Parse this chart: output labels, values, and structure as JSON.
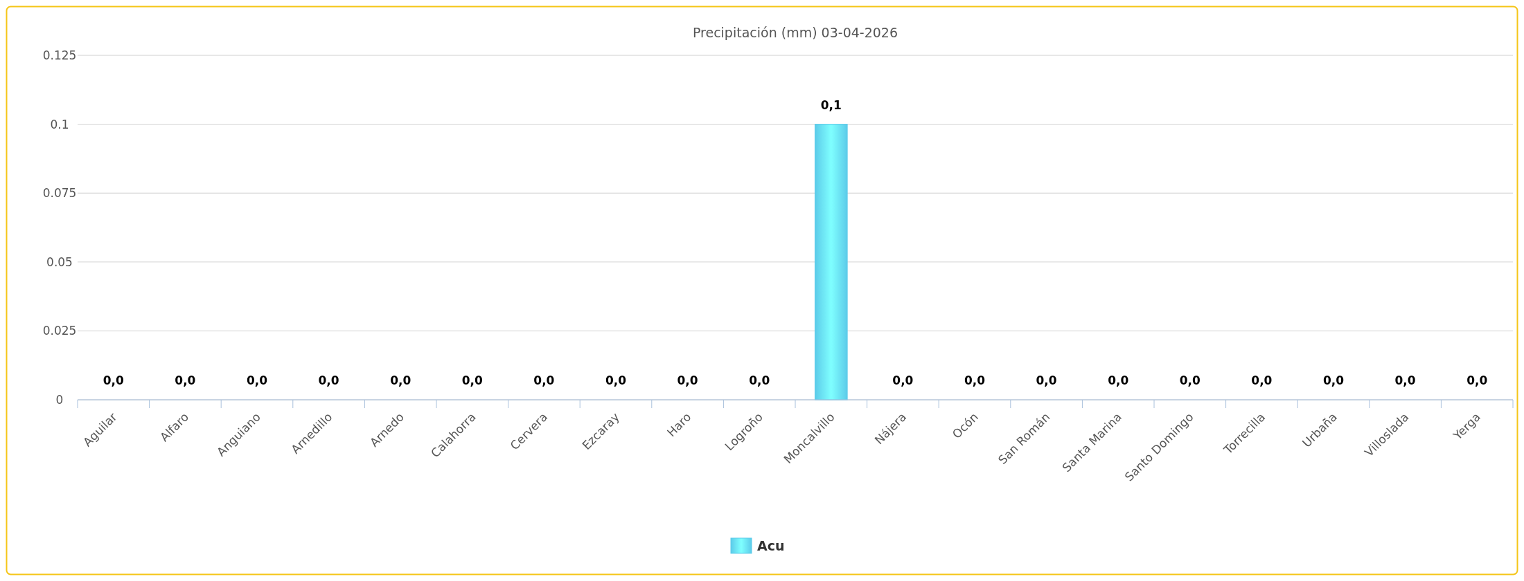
{
  "chart_data": {
    "type": "bar",
    "title": "Precipitación (mm) 03-04-2026",
    "categories": [
      "Aguilar",
      "Alfaro",
      "Anguiano",
      "Arnedillo",
      "Arnedo",
      "Calahorra",
      "Cervera",
      "Ezcaray",
      "Haro",
      "Logroño",
      "Moncalvillo",
      "Nájera",
      "Ocón",
      "San Román",
      "Santa Marina",
      "Santo Domingo",
      "Torrecilla",
      "Urbaña",
      "Villoslada",
      "Yerga"
    ],
    "series": [
      {
        "name": "Acu",
        "color": "#5ccbe9",
        "values": [
          0,
          0,
          0,
          0,
          0,
          0,
          0,
          0,
          0,
          0,
          0.1,
          0,
          0,
          0,
          0,
          0,
          0,
          0,
          0,
          0
        ],
        "value_labels": [
          "0,0",
          "0,0",
          "0,0",
          "0,0",
          "0,0",
          "0,0",
          "0,0",
          "0,0",
          "0,0",
          "0,0",
          "0,1",
          "0,0",
          "0,0",
          "0,0",
          "0,0",
          "0,0",
          "0,0",
          "0,0",
          "0,0",
          "0,0"
        ]
      }
    ],
    "ylim": [
      0,
      0.125
    ],
    "yticks": [
      0,
      0.025,
      0.05,
      0.075,
      0.1,
      0.125
    ],
    "grid": "y",
    "legend": "bottom"
  }
}
